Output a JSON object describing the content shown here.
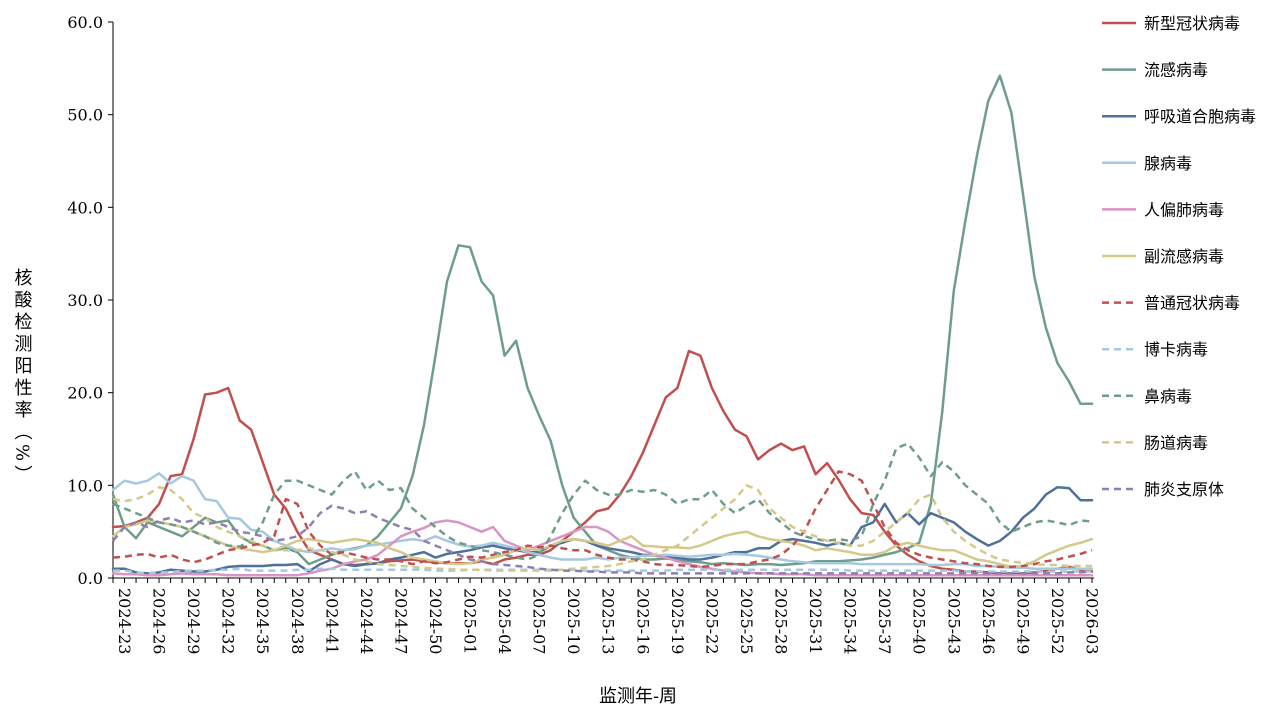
{
  "chart_data": {
    "type": "line",
    "xlabel": "监测年-周",
    "ylabel": "核酸检测阳性率（%）",
    "ylim": [
      0,
      60
    ],
    "yticks": [
      "0.0",
      "10.0",
      "20.0",
      "30.0",
      "40.0",
      "50.0",
      "60.0"
    ],
    "grid": false,
    "legend_position": "right",
    "x": [
      "2024-23",
      "2024-24",
      "2024-25",
      "2024-26",
      "2024-27",
      "2024-28",
      "2024-29",
      "2024-30",
      "2024-31",
      "2024-32",
      "2024-33",
      "2024-34",
      "2024-35",
      "2024-36",
      "2024-37",
      "2024-38",
      "2024-39",
      "2024-40",
      "2024-41",
      "2024-42",
      "2024-43",
      "2024-44",
      "2024-45",
      "2024-46",
      "2024-47",
      "2024-48",
      "2024-49",
      "2024-50",
      "2024-51",
      "2024-52",
      "2025-01",
      "2025-02",
      "2025-03",
      "2025-04",
      "2025-05",
      "2025-06",
      "2025-07",
      "2025-08",
      "2025-09",
      "2025-10",
      "2025-11",
      "2025-12",
      "2025-13",
      "2025-14",
      "2025-15",
      "2025-16",
      "2025-17",
      "2025-18",
      "2025-19",
      "2025-20",
      "2025-21",
      "2025-22",
      "2025-23",
      "2025-24",
      "2025-25",
      "2025-26",
      "2025-27",
      "2025-28",
      "2025-29",
      "2025-30",
      "2025-31",
      "2025-32",
      "2025-33",
      "2025-34",
      "2025-35",
      "2025-36",
      "2025-37",
      "2025-38",
      "2025-39",
      "2025-40",
      "2025-41",
      "2025-42",
      "2025-43",
      "2025-44",
      "2025-45",
      "2025-46",
      "2025-47",
      "2025-48",
      "2025-49",
      "2025-50",
      "2025-51",
      "2025-52",
      "2026-01",
      "2026-02",
      "2026-03",
      "2026-04"
    ],
    "xtick_labels": [
      "2024-23",
      "2024-26",
      "2024-29",
      "2024-32",
      "2024-35",
      "2024-38",
      "2024-41",
      "2024-44",
      "2024-47",
      "2024-50",
      "2025-01",
      "2025-04",
      "2025-07",
      "2025-10",
      "2025-13",
      "2025-16",
      "2025-19",
      "2025-22",
      "2025-25",
      "2025-28",
      "2025-31",
      "2025-34",
      "2025-37",
      "2025-40",
      "2025-43",
      "2025-46",
      "2025-49",
      "2025-52",
      "2026-03"
    ],
    "series": [
      {
        "name": "新型冠状病毒",
        "color": "#c0504d",
        "dash": false,
        "values": [
          5.5,
          5.6,
          6.0,
          6.5,
          8.0,
          11.0,
          11.2,
          15.0,
          19.8,
          20.0,
          20.5,
          17.0,
          16.0,
          12.5,
          9.0,
          7.5,
          5.0,
          3.0,
          2.5,
          2.0,
          1.5,
          1.4,
          1.5,
          1.6,
          1.8,
          1.9,
          2.0,
          1.8,
          1.7,
          1.6,
          1.6,
          1.6,
          1.8,
          1.5,
          2.0,
          2.2,
          2.5,
          2.5,
          3.0,
          4.0,
          5.0,
          6.0,
          7.2,
          7.5,
          9.0,
          11.0,
          13.5,
          16.5,
          19.5,
          20.5,
          24.5,
          24.0,
          20.5,
          18.0,
          16.0,
          15.3,
          12.8,
          13.8,
          14.5,
          13.8,
          14.2,
          11.2,
          12.4,
          10.6,
          8.5,
          7.0,
          6.8,
          5.0,
          3.5,
          2.5,
          1.8,
          1.3,
          1.0,
          0.9,
          0.7,
          0.7,
          0.6,
          0.5,
          0.5,
          0.5,
          0.6,
          0.8,
          1.0,
          1.2,
          0.9,
          0.7
        ]
      },
      {
        "name": "流感病毒",
        "color": "#6e9e8a",
        "dash": false,
        "values": [
          9.0,
          5.5,
          4.3,
          6.0,
          5.5,
          5.0,
          4.5,
          5.5,
          6.5,
          6.0,
          6.2,
          4.5,
          3.8,
          3.5,
          3.0,
          3.2,
          2.8,
          1.5,
          2.0,
          2.5,
          3.0,
          3.2,
          3.5,
          4.5,
          6.0,
          7.5,
          11.0,
          16.5,
          24.0,
          32.0,
          35.9,
          35.7,
          32.0,
          30.5,
          24.0,
          25.6,
          20.5,
          17.5,
          14.8,
          10.0,
          6.5,
          5.0,
          3.5,
          3.0,
          2.5,
          2.2,
          2.0,
          2.0,
          2.1,
          2.0,
          1.8,
          1.7,
          1.5,
          1.6,
          1.5,
          1.4,
          1.5,
          1.5,
          1.4,
          1.5,
          1.6,
          1.8,
          1.8,
          1.8,
          1.9,
          2.0,
          2.2,
          2.5,
          2.8,
          3.2,
          3.8,
          8.0,
          18.0,
          31.0,
          38.5,
          45.5,
          51.5,
          54.2,
          50.2,
          41.5,
          32.5,
          27.0,
          23.2,
          21.2,
          18.8,
          18.8
        ]
      },
      {
        "name": "呼吸道合胞病毒",
        "color": "#4f7199",
        "dash": false,
        "values": [
          1.0,
          1.0,
          0.6,
          0.5,
          0.6,
          0.9,
          0.8,
          0.7,
          0.7,
          0.9,
          1.2,
          1.3,
          1.3,
          1.3,
          1.4,
          1.4,
          1.5,
          0.7,
          1.5,
          2.0,
          1.5,
          1.3,
          1.5,
          1.6,
          2.0,
          2.2,
          2.5,
          2.8,
          2.2,
          2.6,
          2.8,
          3.0,
          3.3,
          3.5,
          3.2,
          3.0,
          2.8,
          2.8,
          3.5,
          3.8,
          4.2,
          4.0,
          3.5,
          3.2,
          3.0,
          2.8,
          2.5,
          2.4,
          2.3,
          2.2,
          2.0,
          2.0,
          2.2,
          2.5,
          2.8,
          2.8,
          3.2,
          3.2,
          4.0,
          4.2,
          4.0,
          3.8,
          3.5,
          3.8,
          3.5,
          5.5,
          6.0,
          8.0,
          6.0,
          7.0,
          5.8,
          7.0,
          6.5,
          6.0,
          5.0,
          4.2,
          3.5,
          4.0,
          5.0,
          6.5,
          7.5,
          9.0,
          9.8,
          9.7,
          8.4,
          8.4
        ]
      },
      {
        "name": "腺病毒",
        "color": "#a6c8e0",
        "dash": false,
        "values": [
          9.5,
          10.5,
          10.2,
          10.5,
          11.3,
          10.2,
          11.0,
          10.5,
          8.5,
          8.3,
          6.5,
          6.4,
          5.2,
          5.0,
          4.0,
          3.5,
          3.0,
          2.8,
          3.0,
          3.2,
          3.0,
          3.1,
          3.5,
          3.6,
          3.8,
          4.0,
          4.2,
          4.0,
          4.5,
          4.0,
          3.6,
          3.4,
          3.5,
          3.8,
          3.5,
          3.2,
          2.8,
          2.5,
          2.2,
          2.0,
          2.0,
          2.0,
          2.2,
          2.0,
          2.2,
          2.2,
          2.4,
          2.4,
          2.5,
          2.4,
          2.3,
          2.4,
          2.5,
          2.5,
          2.6,
          2.5,
          2.4,
          2.2,
          2.0,
          1.8,
          1.7,
          1.6,
          1.6,
          1.6,
          1.6,
          1.5,
          1.5,
          1.5,
          1.5,
          1.5,
          1.5,
          1.4,
          1.4,
          1.5,
          1.5,
          1.3,
          1.3,
          1.2,
          1.1,
          1.1,
          1.0,
          1.0,
          1.0,
          1.0,
          1.0,
          1.0
        ]
      },
      {
        "name": "人偏肺病毒",
        "color": "#d995c4",
        "dash": false,
        "values": [
          0.5,
          0.4,
          0.4,
          0.3,
          0.3,
          0.4,
          0.5,
          0.4,
          0.4,
          0.4,
          0.3,
          0.3,
          0.3,
          0.3,
          0.3,
          0.3,
          0.3,
          0.5,
          0.8,
          1.0,
          1.5,
          1.8,
          2.0,
          2.5,
          3.5,
          4.5,
          5.0,
          5.4,
          6.0,
          6.2,
          6.0,
          5.5,
          5.0,
          5.5,
          4.0,
          3.5,
          3.0,
          3.5,
          4.0,
          4.5,
          5.0,
          5.5,
          5.5,
          5.0,
          4.0,
          3.5,
          3.0,
          2.5,
          2.2,
          1.8,
          1.5,
          1.2,
          1.0,
          0.8,
          0.7,
          0.6,
          0.5,
          0.5,
          0.4,
          0.4,
          0.4,
          0.3,
          0.3,
          0.3,
          0.3,
          0.3,
          0.3,
          0.3,
          0.3,
          0.3,
          0.3,
          0.3,
          0.3,
          0.3,
          0.3,
          0.3,
          0.3,
          0.3,
          0.3,
          0.3,
          0.3,
          0.3,
          0.3,
          0.3,
          0.3,
          0.3
        ]
      },
      {
        "name": "副流感病毒",
        "color": "#d2c98a",
        "dash": false,
        "values": [
          4.5,
          5.5,
          5.8,
          6.2,
          6.0,
          5.8,
          5.5,
          5.0,
          4.5,
          4.0,
          3.5,
          3.2,
          3.0,
          2.8,
          3.0,
          3.5,
          4.0,
          4.2,
          4.0,
          3.8,
          4.0,
          4.2,
          4.0,
          3.8,
          3.2,
          2.8,
          2.2,
          2.0,
          1.8,
          1.6,
          1.5,
          1.6,
          2.0,
          2.2,
          2.5,
          3.0,
          3.2,
          3.0,
          3.5,
          4.0,
          4.2,
          4.0,
          3.8,
          3.5,
          4.0,
          4.5,
          3.5,
          3.4,
          3.3,
          3.3,
          3.2,
          3.5,
          4.0,
          4.5,
          4.8,
          5.0,
          4.5,
          4.2,
          4.0,
          3.8,
          3.5,
          3.0,
          3.2,
          3.0,
          2.8,
          2.5,
          2.5,
          2.8,
          3.5,
          3.8,
          3.5,
          3.2,
          3.0,
          3.0,
          2.5,
          2.0,
          1.8,
          1.5,
          1.2,
          1.3,
          1.8,
          2.5,
          3.0,
          3.5,
          3.8,
          4.2
        ]
      },
      {
        "name": "普通冠状病毒",
        "color": "#c0504d",
        "dash": true,
        "values": [
          2.2,
          2.3,
          2.5,
          2.6,
          2.2,
          2.5,
          2.0,
          1.7,
          2.0,
          2.5,
          3.0,
          3.2,
          3.5,
          3.8,
          4.5,
          8.5,
          8.0,
          5.0,
          3.5,
          2.5,
          2.8,
          2.5,
          2.2,
          2.0,
          2.0,
          1.8,
          1.5,
          1.8,
          1.6,
          1.7,
          2.0,
          2.3,
          2.2,
          2.5,
          2.8,
          3.0,
          3.5,
          3.3,
          3.5,
          3.2,
          3.0,
          3.0,
          2.5,
          2.2,
          2.0,
          2.0,
          1.8,
          1.5,
          1.4,
          1.4,
          1.3,
          1.2,
          1.3,
          1.5,
          1.5,
          1.5,
          1.8,
          2.0,
          2.5,
          3.5,
          5.0,
          7.5,
          9.5,
          11.5,
          11.2,
          10.5,
          8.0,
          5.5,
          3.8,
          3.0,
          2.5,
          2.2,
          2.0,
          1.8,
          1.6,
          1.5,
          1.3,
          1.2,
          1.2,
          1.3,
          1.5,
          1.8,
          2.0,
          2.3,
          2.6,
          3.0
        ]
      },
      {
        "name": "博卡病毒",
        "color": "#a6c8e0",
        "dash": true,
        "values": [
          0.8,
          0.8,
          0.6,
          0.5,
          0.6,
          0.6,
          0.8,
          0.8,
          0.8,
          0.9,
          0.9,
          1.0,
          0.8,
          0.8,
          0.8,
          0.8,
          0.9,
          0.9,
          1.0,
          1.0,
          0.9,
          0.9,
          0.9,
          0.9,
          0.9,
          0.9,
          0.9,
          0.9,
          0.8,
          0.8,
          0.8,
          0.9,
          0.9,
          0.9,
          0.9,
          0.9,
          0.9,
          0.9,
          0.9,
          0.9,
          0.9,
          0.8,
          0.8,
          0.8,
          0.8,
          0.8,
          0.8,
          0.8,
          0.8,
          0.9,
          0.9,
          0.9,
          0.9,
          0.9,
          0.9,
          0.9,
          0.9,
          0.9,
          0.9,
          0.9,
          0.9,
          0.9,
          0.9,
          0.9,
          0.8,
          0.8,
          0.8,
          0.8,
          0.8,
          0.8,
          0.8,
          0.8,
          0.8,
          0.8,
          0.7,
          0.7,
          0.7,
          0.7,
          0.7,
          0.7,
          0.7,
          0.7,
          0.7,
          0.7,
          0.7,
          0.7
        ]
      },
      {
        "name": "鼻病毒",
        "color": "#6e9e8a",
        "dash": true,
        "values": [
          8.0,
          7.5,
          7.0,
          6.5,
          6.0,
          5.8,
          5.5,
          5.0,
          4.5,
          3.8,
          3.5,
          3.4,
          4.0,
          6.0,
          9.0,
          10.5,
          10.5,
          10.0,
          9.5,
          9.0,
          10.5,
          11.5,
          9.5,
          10.5,
          9.5,
          9.7,
          7.5,
          6.5,
          5.5,
          4.5,
          3.8,
          3.5,
          3.0,
          2.8,
          2.5,
          2.2,
          2.0,
          2.5,
          4.5,
          7.0,
          9.0,
          10.5,
          9.5,
          9.0,
          9.0,
          9.5,
          9.3,
          9.5,
          9.0,
          8.0,
          8.5,
          8.5,
          9.5,
          8.0,
          7.0,
          7.8,
          8.5,
          7.0,
          6.0,
          5.0,
          4.5,
          4.2,
          4.0,
          4.2,
          4.0,
          4.5,
          8.0,
          10.5,
          14.0,
          14.5,
          13.0,
          11.0,
          12.5,
          11.5,
          10.0,
          9.0,
          8.0,
          6.0,
          5.0,
          5.5,
          6.0,
          6.2,
          6.0,
          5.7,
          6.2,
          6.1
        ]
      },
      {
        "name": "肠道病毒",
        "color": "#d2c98a",
        "dash": true,
        "values": [
          8.5,
          8.3,
          8.5,
          9.0,
          9.8,
          9.5,
          8.5,
          7.0,
          6.5,
          5.5,
          5.0,
          4.5,
          4.0,
          3.5,
          3.0,
          3.0,
          3.0,
          3.2,
          3.0,
          2.8,
          2.5,
          2.0,
          1.8,
          1.5,
          1.4,
          1.3,
          1.2,
          1.1,
          1.0,
          1.0,
          0.9,
          0.9,
          0.9,
          0.8,
          0.8,
          0.8,
          0.8,
          0.8,
          0.8,
          0.9,
          1.0,
          1.1,
          1.2,
          1.3,
          1.5,
          1.8,
          2.0,
          2.5,
          3.0,
          3.5,
          4.5,
          5.5,
          6.5,
          7.5,
          8.5,
          10.0,
          9.5,
          7.5,
          6.5,
          5.5,
          5.0,
          4.5,
          4.0,
          3.8,
          3.5,
          3.5,
          4.0,
          5.0,
          6.0,
          7.0,
          8.5,
          9.0,
          6.5,
          5.0,
          4.0,
          3.2,
          2.5,
          2.0,
          1.8,
          1.6,
          1.5,
          1.4,
          1.4,
          1.3,
          1.3,
          1.3
        ]
      },
      {
        "name": "肺炎支原体",
        "color": "#8f7fb0",
        "dash": true,
        "values": [
          4.0,
          5.5,
          6.0,
          5.5,
          6.2,
          6.5,
          6.0,
          6.2,
          5.8,
          6.0,
          5.5,
          5.0,
          4.8,
          4.5,
          4.0,
          4.2,
          4.5,
          5.5,
          7.0,
          7.8,
          7.5,
          7.0,
          7.2,
          6.5,
          6.0,
          5.5,
          5.2,
          4.0,
          3.5,
          3.0,
          2.5,
          2.0,
          1.8,
          1.5,
          1.4,
          1.3,
          1.2,
          1.0,
          0.9,
          0.8,
          0.8,
          0.7,
          0.7,
          0.6,
          0.6,
          0.6,
          0.5,
          0.5,
          0.5,
          0.5,
          0.5,
          0.5,
          0.5,
          0.5,
          0.5,
          0.5,
          0.5,
          0.5,
          0.5,
          0.5,
          0.5,
          0.5,
          0.5,
          0.5,
          0.5,
          0.5,
          0.5,
          0.5,
          0.5,
          0.5,
          0.5,
          0.5,
          0.5,
          0.5,
          0.5,
          0.5,
          0.5,
          0.5,
          0.5,
          0.5,
          0.5,
          0.5,
          0.5,
          0.6,
          0.6,
          0.7
        ]
      }
    ]
  }
}
